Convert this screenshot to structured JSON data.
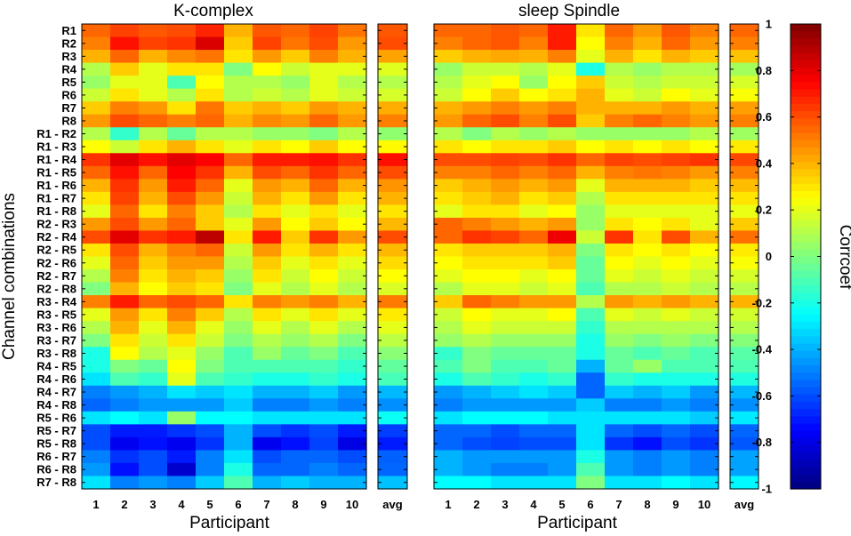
{
  "chart_data": {
    "type": "heatmap",
    "colorbar": {
      "label": "Corrcoef",
      "range": [
        -1,
        1
      ],
      "ticks": [
        "1",
        "0.8",
        "0.6",
        "0.4",
        "0.2",
        "0",
        "-0.2",
        "-0.4",
        "-0.6",
        "-0.8",
        "-1"
      ],
      "colormap": "jet"
    },
    "ylabel": "Channel combinations",
    "rows": [
      "R1",
      "R2",
      "R3",
      "R4",
      "R5",
      "R6",
      "R7",
      "R8",
      "R1 - R2",
      "R1 - R3",
      "R1 - R4",
      "R1 - R5",
      "R1 - R6",
      "R1 - R7",
      "R1 - R8",
      "R2 - R3",
      "R2 - R4",
      "R2 - R5",
      "R2 - R6",
      "R2 - R7",
      "R2 - R8",
      "R3 - R4",
      "R3 - R5",
      "R3 - R6",
      "R3 - R7",
      "R3 - R8",
      "R4 - R5",
      "R4 - R6",
      "R4 - R7",
      "R4 - R8",
      "R5 - R6",
      "R5 - R7",
      "R5 - R8",
      "R6 - R7",
      "R6 - R8",
      "R7 - R8"
    ],
    "panels": [
      {
        "title": "K-complex",
        "xlabel": "Participant",
        "x": [
          "1",
          "2",
          "3",
          "4",
          "5",
          "6",
          "7",
          "8",
          "9",
          "10"
        ],
        "avg_label": "avg",
        "values": [
          [
            0.55,
            0.62,
            0.58,
            0.6,
            0.68,
            0.4,
            0.58,
            0.55,
            0.62,
            0.52
          ],
          [
            0.5,
            0.72,
            0.62,
            0.65,
            0.82,
            0.35,
            0.62,
            0.52,
            0.6,
            0.45
          ],
          [
            0.4,
            0.55,
            0.4,
            0.48,
            0.52,
            0.3,
            0.45,
            0.35,
            0.5,
            0.4
          ],
          [
            0.1,
            0.35,
            0.2,
            0.3,
            0.3,
            0.0,
            0.25,
            0.15,
            0.2,
            0.2
          ],
          [
            0.05,
            0.2,
            0.2,
            -0.1,
            0.25,
            0.1,
            0.1,
            0.05,
            0.2,
            0.1
          ],
          [
            0.15,
            0.3,
            0.2,
            0.1,
            0.3,
            0.1,
            0.15,
            0.1,
            0.2,
            0.15
          ],
          [
            0.35,
            0.5,
            0.45,
            0.3,
            0.52,
            0.35,
            0.4,
            0.35,
            0.45,
            0.4
          ],
          [
            0.45,
            0.6,
            0.55,
            0.5,
            0.55,
            0.4,
            0.48,
            0.45,
            0.55,
            0.45
          ],
          [
            0.1,
            -0.15,
            0.1,
            -0.05,
            0.1,
            0.1,
            0.05,
            0.05,
            0.0,
            0.1
          ],
          [
            0.25,
            0.15,
            0.3,
            0.4,
            0.3,
            0.2,
            0.3,
            0.25,
            0.35,
            0.25
          ],
          [
            0.65,
            0.8,
            0.72,
            0.8,
            0.75,
            0.55,
            0.7,
            0.7,
            0.72,
            0.65
          ],
          [
            0.55,
            0.72,
            0.55,
            0.75,
            0.65,
            0.4,
            0.6,
            0.55,
            0.65,
            0.55
          ],
          [
            0.4,
            0.65,
            0.45,
            0.7,
            0.55,
            0.2,
            0.45,
            0.4,
            0.55,
            0.4
          ],
          [
            0.3,
            0.62,
            0.4,
            0.6,
            0.45,
            0.15,
            0.4,
            0.3,
            0.45,
            0.3
          ],
          [
            0.2,
            0.55,
            0.3,
            0.5,
            0.35,
            0.1,
            0.3,
            0.2,
            0.3,
            0.2
          ],
          [
            0.45,
            0.6,
            0.45,
            0.55,
            0.35,
            0.2,
            0.45,
            0.25,
            0.35,
            0.25
          ],
          [
            0.6,
            0.8,
            0.65,
            0.7,
            0.88,
            0.3,
            0.7,
            0.35,
            0.65,
            0.45
          ],
          [
            0.3,
            0.6,
            0.4,
            0.5,
            0.55,
            0.15,
            0.45,
            0.3,
            0.4,
            0.3
          ],
          [
            0.2,
            0.55,
            0.35,
            0.45,
            0.45,
            0.1,
            0.35,
            0.2,
            0.3,
            0.2
          ],
          [
            0.1,
            0.5,
            0.3,
            0.4,
            0.35,
            0.05,
            0.3,
            0.15,
            0.25,
            0.15
          ],
          [
            0.0,
            0.4,
            0.25,
            0.35,
            0.3,
            0.0,
            0.2,
            0.1,
            0.2,
            0.1
          ],
          [
            0.5,
            0.7,
            0.55,
            0.6,
            0.55,
            0.3,
            0.5,
            0.45,
            0.5,
            0.4
          ],
          [
            0.2,
            0.45,
            0.3,
            0.5,
            0.35,
            0.1,
            0.3,
            0.2,
            0.3,
            0.2
          ],
          [
            0.1,
            0.4,
            0.2,
            0.4,
            0.2,
            0.05,
            0.2,
            0.1,
            0.2,
            0.1
          ],
          [
            0.0,
            0.3,
            0.15,
            0.3,
            0.15,
            0.0,
            0.1,
            0.05,
            0.1,
            0.0
          ],
          [
            -0.2,
            0.25,
            0.1,
            0.2,
            0.05,
            -0.1,
            0.05,
            -0.05,
            0.0,
            -0.1
          ],
          [
            -0.2,
            0.0,
            -0.05,
            0.25,
            0.0,
            -0.1,
            -0.1,
            -0.1,
            -0.1,
            -0.15
          ],
          [
            -0.3,
            -0.1,
            -0.15,
            0.2,
            -0.1,
            -0.15,
            -0.2,
            -0.2,
            -0.15,
            -0.2
          ],
          [
            -0.5,
            -0.45,
            -0.4,
            -0.3,
            -0.35,
            -0.3,
            -0.4,
            -0.4,
            -0.35,
            -0.45
          ],
          [
            -0.55,
            -0.5,
            -0.45,
            -0.45,
            -0.45,
            -0.35,
            -0.5,
            -0.5,
            -0.45,
            -0.5
          ],
          [
            -0.3,
            -0.25,
            -0.3,
            0.05,
            -0.25,
            -0.25,
            -0.3,
            -0.3,
            -0.3,
            -0.3
          ],
          [
            -0.6,
            -0.7,
            -0.7,
            -0.65,
            -0.6,
            -0.4,
            -0.6,
            -0.65,
            -0.6,
            -0.7
          ],
          [
            -0.6,
            -0.78,
            -0.72,
            -0.78,
            -0.65,
            -0.4,
            -0.78,
            -0.72,
            -0.62,
            -0.8
          ],
          [
            -0.5,
            -0.65,
            -0.6,
            -0.7,
            -0.5,
            -0.3,
            -0.6,
            -0.55,
            -0.55,
            -0.6
          ],
          [
            -0.45,
            -0.72,
            -0.6,
            -0.85,
            -0.5,
            -0.2,
            -0.55,
            -0.55,
            -0.5,
            -0.55
          ],
          [
            -0.3,
            -0.5,
            -0.45,
            -0.5,
            -0.35,
            -0.1,
            -0.4,
            -0.35,
            -0.4,
            -0.4
          ]
        ],
        "avg": [
          0.58,
          0.6,
          0.43,
          0.19,
          0.1,
          0.17,
          0.41,
          0.5,
          0.03,
          0.26,
          0.72,
          0.6,
          0.46,
          0.4,
          0.3,
          0.39,
          0.6,
          0.39,
          0.32,
          0.25,
          0.18,
          0.51,
          0.29,
          0.2,
          0.12,
          0.02,
          -0.06,
          -0.11,
          -0.39,
          -0.47,
          -0.23,
          -0.63,
          -0.7,
          -0.56,
          -0.55,
          -0.37
        ]
      },
      {
        "title": "sleep Spindle",
        "xlabel": "Participant",
        "x": [
          "1",
          "2",
          "3",
          "4",
          "5",
          "6",
          "7",
          "8",
          "9",
          "10"
        ],
        "avg_label": "avg",
        "values": [
          [
            0.55,
            0.55,
            0.58,
            0.55,
            0.7,
            0.3,
            0.55,
            0.45,
            0.58,
            0.5
          ],
          [
            0.5,
            0.55,
            0.58,
            0.5,
            0.7,
            0.25,
            0.5,
            0.4,
            0.55,
            0.45
          ],
          [
            0.35,
            0.4,
            0.42,
            0.4,
            0.5,
            0.2,
            0.4,
            0.3,
            0.4,
            0.35
          ],
          [
            0.05,
            0.15,
            0.15,
            0.1,
            0.2,
            -0.2,
            0.1,
            0.05,
            0.1,
            0.1
          ],
          [
            0.1,
            0.2,
            0.25,
            0.05,
            0.25,
            0.35,
            0.15,
            0.1,
            0.15,
            0.15
          ],
          [
            0.15,
            0.25,
            0.35,
            0.25,
            0.3,
            0.4,
            0.2,
            0.15,
            0.25,
            0.2
          ],
          [
            0.4,
            0.45,
            0.5,
            0.45,
            0.5,
            0.4,
            0.4,
            0.4,
            0.45,
            0.4
          ],
          [
            0.45,
            0.55,
            0.6,
            0.5,
            0.6,
            0.35,
            0.5,
            0.55,
            0.5,
            0.45
          ],
          [
            0.1,
            0.0,
            0.1,
            0.05,
            0.1,
            0.05,
            0.05,
            0.05,
            0.05,
            0.1
          ],
          [
            0.3,
            0.25,
            0.3,
            0.3,
            0.35,
            0.25,
            0.3,
            0.25,
            0.3,
            0.25
          ],
          [
            0.6,
            0.6,
            0.62,
            0.6,
            0.65,
            0.55,
            0.62,
            0.6,
            0.62,
            0.65
          ],
          [
            0.5,
            0.5,
            0.55,
            0.5,
            0.55,
            0.4,
            0.5,
            0.52,
            0.5,
            0.45
          ],
          [
            0.35,
            0.4,
            0.45,
            0.4,
            0.45,
            0.2,
            0.4,
            0.4,
            0.4,
            0.35
          ],
          [
            0.3,
            0.35,
            0.4,
            0.3,
            0.35,
            0.1,
            0.3,
            0.3,
            0.3,
            0.3
          ],
          [
            0.2,
            0.3,
            0.3,
            0.2,
            0.25,
            0.05,
            0.2,
            0.2,
            0.2,
            0.2
          ],
          [
            0.55,
            0.5,
            0.45,
            0.4,
            0.45,
            0.05,
            0.3,
            0.25,
            0.3,
            0.2
          ],
          [
            0.55,
            0.65,
            0.62,
            0.55,
            0.78,
            0.15,
            0.65,
            0.3,
            0.6,
            0.4
          ],
          [
            0.3,
            0.35,
            0.35,
            0.35,
            0.4,
            0.0,
            0.3,
            0.25,
            0.3,
            0.25
          ],
          [
            0.25,
            0.3,
            0.3,
            0.3,
            0.35,
            -0.05,
            0.25,
            0.2,
            0.25,
            0.2
          ],
          [
            0.2,
            0.25,
            0.25,
            0.2,
            0.25,
            -0.05,
            0.2,
            0.15,
            0.2,
            0.15
          ],
          [
            0.1,
            0.2,
            0.2,
            0.15,
            0.2,
            -0.1,
            0.1,
            0.1,
            0.15,
            0.1
          ],
          [
            0.35,
            0.55,
            0.5,
            0.45,
            0.45,
            0.1,
            0.45,
            0.4,
            0.45,
            0.4
          ],
          [
            0.15,
            0.25,
            0.2,
            0.2,
            0.25,
            -0.1,
            0.2,
            0.15,
            0.2,
            0.15
          ],
          [
            0.1,
            0.2,
            0.15,
            0.15,
            0.15,
            -0.15,
            0.1,
            0.1,
            0.1,
            0.1
          ],
          [
            0.05,
            0.1,
            0.05,
            0.05,
            0.05,
            -0.2,
            0.05,
            0.0,
            0.05,
            0.0
          ],
          [
            -0.15,
            0.0,
            -0.05,
            -0.05,
            -0.05,
            -0.2,
            -0.05,
            -0.1,
            -0.05,
            -0.1
          ],
          [
            -0.1,
            0.0,
            -0.1,
            -0.1,
            -0.05,
            -0.4,
            -0.05,
            0.05,
            -0.1,
            -0.1
          ],
          [
            -0.2,
            -0.1,
            -0.15,
            -0.2,
            -0.15,
            -0.55,
            -0.15,
            -0.2,
            -0.2,
            -0.2
          ],
          [
            -0.45,
            -0.4,
            -0.35,
            -0.3,
            -0.35,
            -0.55,
            -0.35,
            -0.4,
            -0.35,
            -0.45
          ],
          [
            -0.5,
            -0.45,
            -0.45,
            -0.45,
            -0.45,
            -0.35,
            -0.5,
            -0.5,
            -0.45,
            -0.5
          ],
          [
            -0.3,
            -0.25,
            -0.25,
            -0.25,
            -0.3,
            -0.3,
            -0.3,
            -0.3,
            -0.3,
            -0.35
          ],
          [
            -0.55,
            -0.55,
            -0.6,
            -0.55,
            -0.55,
            -0.3,
            -0.55,
            -0.6,
            -0.55,
            -0.6
          ],
          [
            -0.55,
            -0.6,
            -0.62,
            -0.6,
            -0.6,
            -0.3,
            -0.65,
            -0.72,
            -0.6,
            -0.65
          ],
          [
            -0.4,
            -0.45,
            -0.45,
            -0.45,
            -0.45,
            -0.2,
            -0.45,
            -0.5,
            -0.45,
            -0.5
          ],
          [
            -0.4,
            -0.45,
            -0.5,
            -0.5,
            -0.45,
            -0.1,
            -0.45,
            -0.5,
            -0.45,
            -0.5
          ],
          [
            -0.25,
            -0.25,
            -0.3,
            -0.3,
            -0.3,
            0.0,
            -0.3,
            -0.3,
            -0.25,
            -0.3
          ]
        ],
        "avg": [
          0.55,
          0.5,
          0.37,
          0.07,
          0.17,
          0.24,
          0.44,
          0.5,
          0.06,
          0.29,
          0.61,
          0.5,
          0.38,
          0.3,
          0.21,
          0.35,
          0.53,
          0.29,
          0.24,
          0.17,
          0.11,
          0.4,
          0.16,
          0.1,
          0.01,
          -0.08,
          -0.1,
          -0.19,
          -0.39,
          -0.47,
          -0.29,
          -0.55,
          -0.58,
          -0.43,
          -0.43,
          -0.26
        ]
      }
    ]
  }
}
